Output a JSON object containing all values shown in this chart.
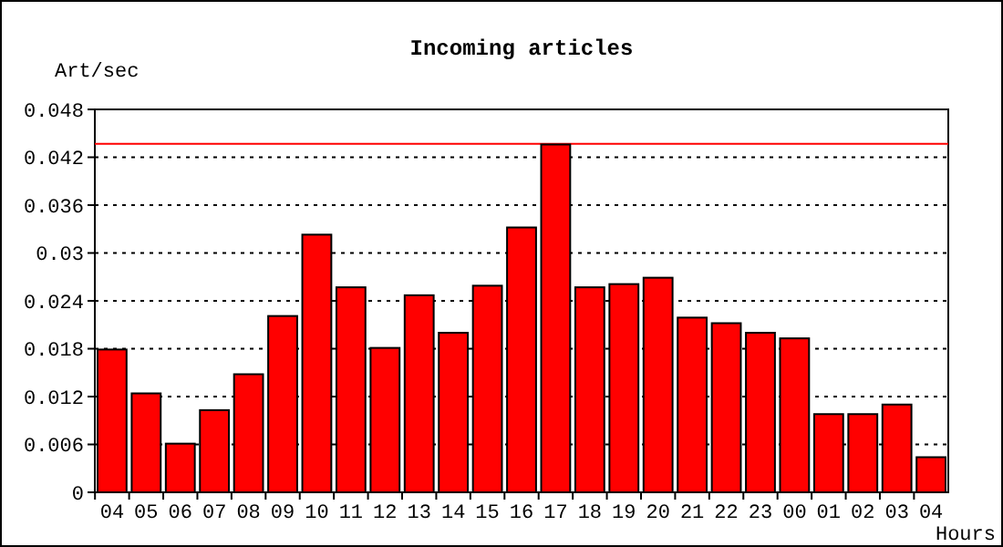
{
  "chart_data": {
    "type": "bar",
    "title": "Incoming articles",
    "ylabel": "Art/sec",
    "xlabel": "Hours",
    "categories": [
      "04",
      "05",
      "06",
      "07",
      "08",
      "09",
      "10",
      "11",
      "12",
      "13",
      "14",
      "15",
      "16",
      "17",
      "18",
      "19",
      "20",
      "21",
      "22",
      "23",
      "00",
      "01",
      "02",
      "03",
      "04"
    ],
    "values": [
      0.0179,
      0.0124,
      0.0061,
      0.0103,
      0.0148,
      0.0221,
      0.0323,
      0.0257,
      0.0181,
      0.0247,
      0.02,
      0.0259,
      0.0332,
      0.0436,
      0.0257,
      0.0261,
      0.0269,
      0.0219,
      0.0212,
      0.02,
      0.0193,
      0.0098,
      0.0098,
      0.011,
      0.0044
    ],
    "color": "#ff0000",
    "ylim": [
      0,
      0.048
    ],
    "yticks": [
      0,
      0.006,
      0.012,
      0.018,
      0.024,
      0.03,
      0.036,
      0.042,
      0.048
    ],
    "grid": "y",
    "ref_lines": [
      {
        "axis": "y",
        "value": 0.0437,
        "color": "#ff0000"
      }
    ]
  }
}
